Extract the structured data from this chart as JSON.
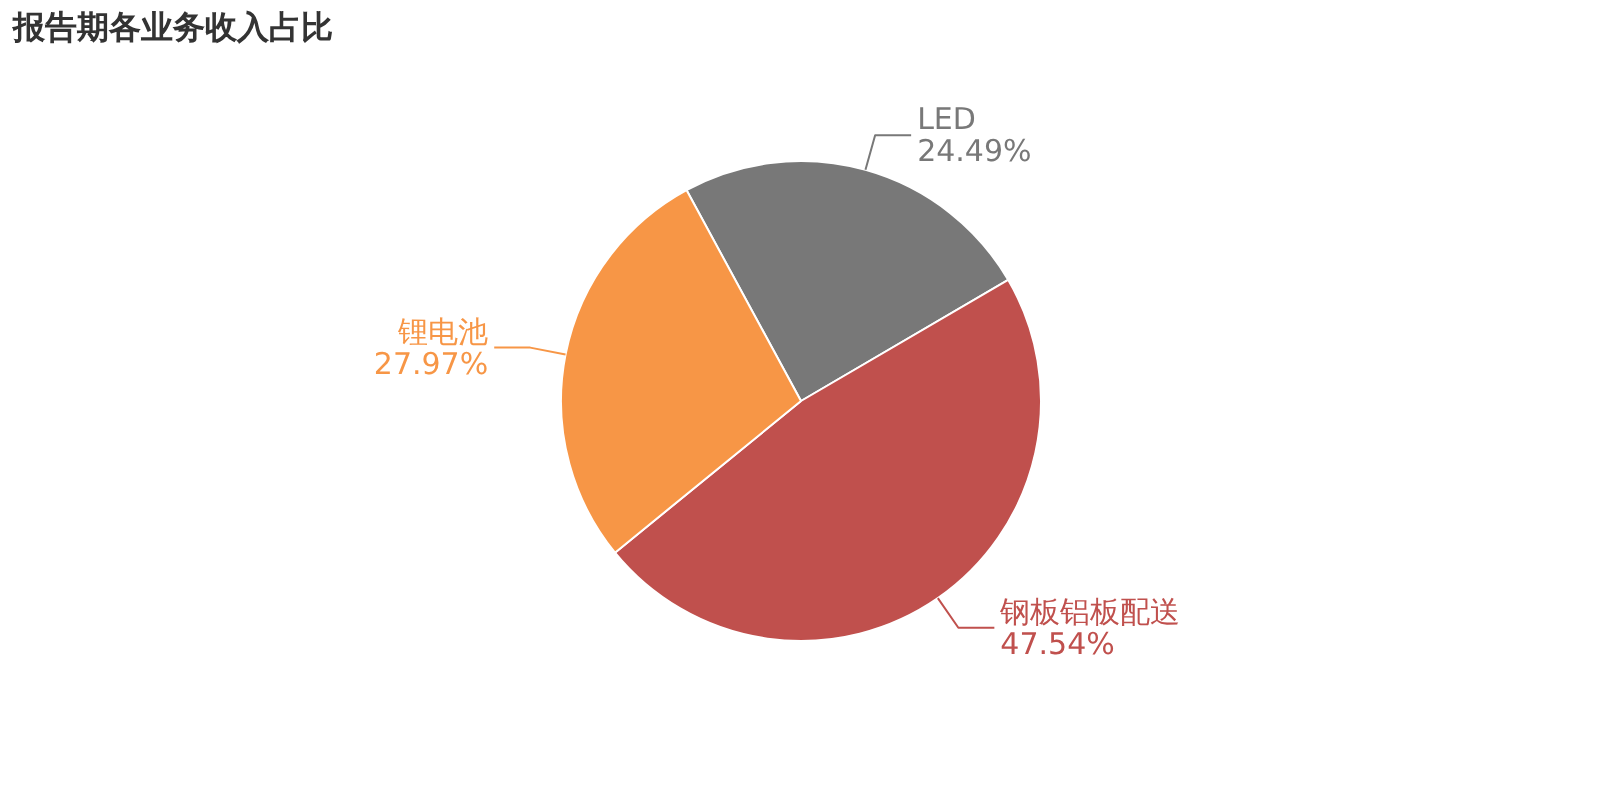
{
  "chart_data": {
    "type": "pie",
    "title": "报告期各业务收入占比",
    "categories": [
      "LED",
      "钢板铝板配送",
      "锂电池"
    ],
    "values": [
      24.49,
      47.54,
      27.97
    ],
    "colors": [
      "#787878",
      "#c0504d",
      "#f79646"
    ],
    "value_labels": [
      "24.49%",
      "47.54%",
      "27.97%"
    ]
  }
}
